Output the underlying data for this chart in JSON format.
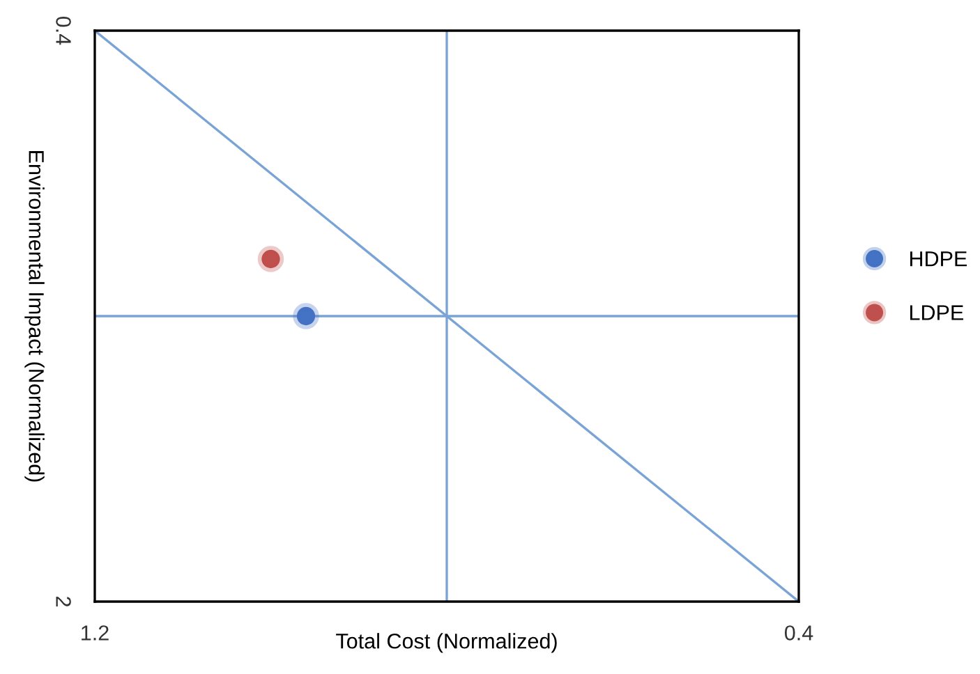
{
  "chart_data": {
    "type": "scatter",
    "xlabel": "Total Cost (Normalized)",
    "ylabel": "Environmental Impact (Normalized)",
    "xlim": [
      1.2,
      0.4
    ],
    "ylim": [
      2,
      0.4
    ],
    "xticks": [
      1.2,
      0.4
    ],
    "yticks": [
      0.4,
      2
    ],
    "legend": "right",
    "marker": "circle",
    "series": [
      {
        "name": "HDPE",
        "color": "#4472c4",
        "x": [
          0.96
        ],
        "values": [
          1.2
        ]
      },
      {
        "name": "LDPE",
        "color": "#c0504d",
        "x": [
          1.0
        ],
        "values": [
          1.04
        ]
      },
      {
        "type": "line",
        "marker": "none",
        "color": "#7aa3d6",
        "x": [
          1.2,
          0.4
        ],
        "values": [
          0.4,
          2
        ]
      }
    ],
    "ref_lines": [
      {
        "axis": "x",
        "value": 0.8,
        "color": "#7aa3d6"
      },
      {
        "axis": "y",
        "value": 1.2,
        "color": "#7aa3d6"
      }
    ]
  }
}
